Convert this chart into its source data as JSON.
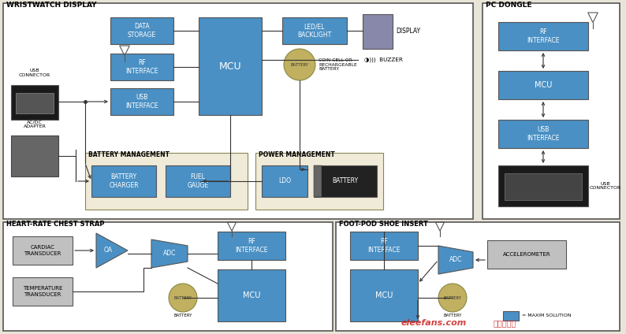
{
  "fig_w": 7.94,
  "fig_h": 4.24,
  "dpi": 100,
  "bg": "#e8e4d8",
  "white": "#ffffff",
  "blue": "#4a90c4",
  "blue_light": "#7ab8d8",
  "gray_box": "#b8b8b8",
  "yellow_sec": "#f0ead8",
  "dark_box": "#2a2a2a",
  "line_col": "#333333",
  "title_col": "#000000",
  "ww_title": "WRISTWATCH DISPLAY",
  "pc_title": "PC DONGLE",
  "hr_title": "HEART-RATE CHEST STRAP",
  "fp_title": "FOOT-POD SHOE INSERT",
  "legend_text": "= MAXIM SOLUTION",
  "watermark1": "eleefans.com",
  "watermark2": "电子发烧友"
}
